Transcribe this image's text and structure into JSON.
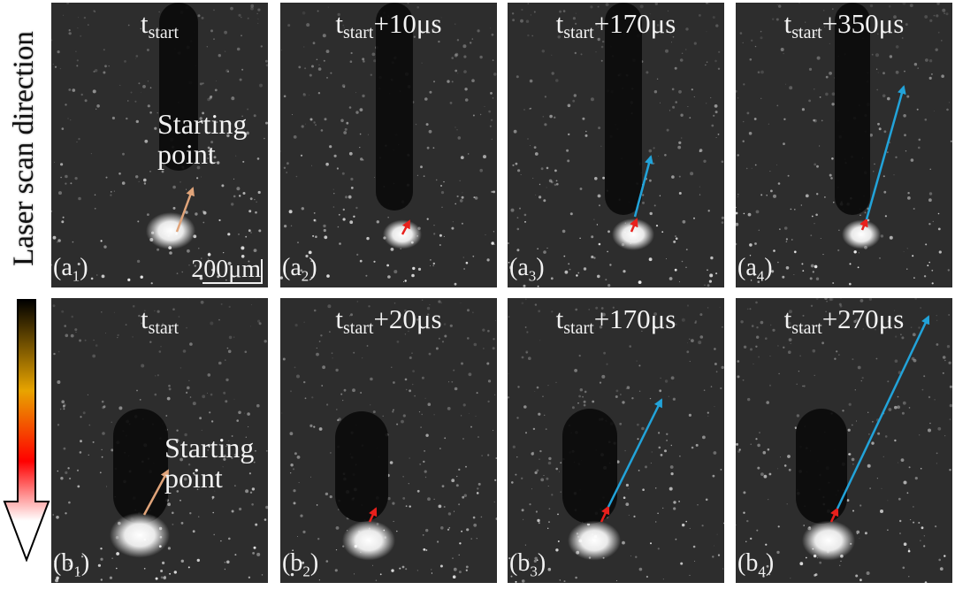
{
  "side": {
    "label": "Laser scan direction",
    "arrow_gradient": [
      "#000000",
      "#e8a400",
      "#ff0000",
      "#ffffff"
    ]
  },
  "colors": {
    "starting_point_arrow": "#e0a47a",
    "short_arrow": "#e8201c",
    "long_arrow": "#22a3d9"
  },
  "panels": [
    {
      "id": "a1",
      "label_letter": "a",
      "label_sub": "1",
      "time_base": "t",
      "time_sub": "start",
      "time_suffix": "",
      "note": [
        "Starting",
        "point"
      ],
      "scale": "200μm"
    },
    {
      "id": "a2",
      "label_letter": "a",
      "label_sub": "2",
      "time_base": "t",
      "time_sub": "start",
      "time_suffix": "+10μs"
    },
    {
      "id": "a3",
      "label_letter": "a",
      "label_sub": "3",
      "time_base": "t",
      "time_sub": "start",
      "time_suffix": "+170μs"
    },
    {
      "id": "a4",
      "label_letter": "a",
      "label_sub": "4",
      "time_base": "t",
      "time_sub": "start",
      "time_suffix": "+350μs"
    },
    {
      "id": "b1",
      "label_letter": "b",
      "label_sub": "1",
      "time_base": "t",
      "time_sub": "start",
      "time_suffix": "",
      "note": [
        "Starting",
        "point"
      ]
    },
    {
      "id": "b2",
      "label_letter": "b",
      "label_sub": "2",
      "time_base": "t",
      "time_sub": "start",
      "time_suffix": "+20μs"
    },
    {
      "id": "b3",
      "label_letter": "b",
      "label_sub": "3",
      "time_base": "t",
      "time_sub": "start",
      "time_suffix": "+170μs"
    },
    {
      "id": "b4",
      "label_letter": "b",
      "label_sub": "4",
      "time_base": "t",
      "time_sub": "start",
      "time_suffix": "+270μs"
    }
  ]
}
